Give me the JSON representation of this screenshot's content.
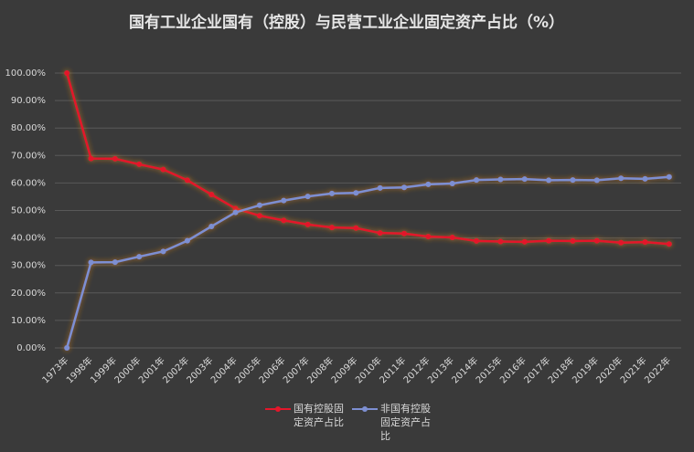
{
  "chart_data": {
    "type": "line",
    "title": "国有工业企业国有（控股）与民营工业企业固定资产占比（%）",
    "categories": [
      "1973年",
      "1998年",
      "1999年",
      "2000年",
      "2001年",
      "2002年",
      "2003年",
      "2004年",
      "2005年",
      "2006年",
      "2007年",
      "2008年",
      "2009年",
      "2010年",
      "2011年",
      "2012年",
      "2013年",
      "2014年",
      "2015年",
      "2016年",
      "2017年",
      "2018年",
      "2019年",
      "2020年",
      "2021年",
      "2022年"
    ],
    "series": [
      {
        "name": "国有控股固定资产占比",
        "color": "#e3172b",
        "values": [
          100,
          68.9,
          68.8,
          66.8,
          64.9,
          61.0,
          55.8,
          50.7,
          48.1,
          46.4,
          44.9,
          43.8,
          43.6,
          41.8,
          41.6,
          40.5,
          40.2,
          38.9,
          38.7,
          38.6,
          39.0,
          38.9,
          39.0,
          38.3,
          38.5,
          37.8
        ]
      },
      {
        "name": "非国有控股固定资产占比",
        "color": "#7d8fd2",
        "values": [
          0,
          31.1,
          31.2,
          33.2,
          35.1,
          39.0,
          44.2,
          49.3,
          51.9,
          53.6,
          55.1,
          56.2,
          56.4,
          58.2,
          58.4,
          59.5,
          59.8,
          61.1,
          61.3,
          61.4,
          61.0,
          61.1,
          61.0,
          61.7,
          61.5,
          62.2
        ]
      }
    ],
    "ylim": [
      0,
      100
    ],
    "yticks": [
      {
        "value": 0,
        "label": "0.00%"
      },
      {
        "value": 10,
        "label": "10.00%"
      },
      {
        "value": 20,
        "label": "20.00%"
      },
      {
        "value": 30,
        "label": "30.00%"
      },
      {
        "value": 40,
        "label": "40.00%"
      },
      {
        "value": 50,
        "label": "50.00%"
      },
      {
        "value": 60,
        "label": "60.00%"
      },
      {
        "value": 70,
        "label": "70.00%"
      },
      {
        "value": 80,
        "label": "80.00%"
      },
      {
        "value": 90,
        "label": "90.00%"
      },
      {
        "value": 100,
        "label": "100.00%"
      }
    ],
    "grid": true,
    "legend": "bottom"
  }
}
